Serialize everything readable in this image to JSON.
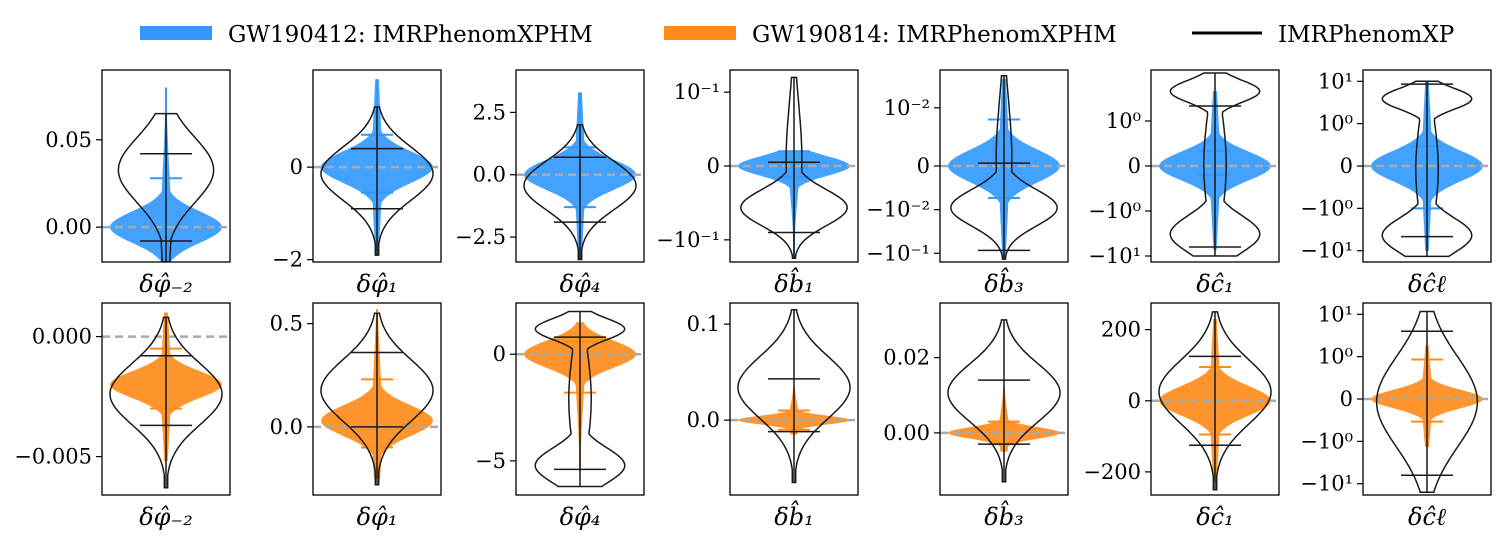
{
  "legend": [
    {
      "label": "GW190412: IMRPhenomXPHM",
      "color": "#3399ff",
      "style": "band"
    },
    {
      "label": "GW190814: IMRPhenomXPHM",
      "color": "#ff8c1a",
      "style": "band"
    },
    {
      "label": "IMRPhenomXP",
      "color": "#000000",
      "style": "line"
    }
  ],
  "colors": {
    "gw190412": "#3399ff",
    "gw190814": "#ff8c1a",
    "xp": "#1a1a1a",
    "zero_line": "#aaaaaa"
  },
  "chart_data": [
    {
      "type": "violin",
      "row": 0,
      "col": 0,
      "event": "gw190412",
      "xlabel": "δφ̂₋₂",
      "scale": "linear",
      "ylim": [
        -0.02,
        0.09
      ],
      "ticks": [
        "0.00",
        "0.05"
      ],
      "tick_values": [
        0,
        0.05
      ],
      "filled": {
        "median": 0.0,
        "low": -0.02,
        "high": 0.08,
        "q_low": -0.008,
        "q_high": 0.028
      },
      "xp": {
        "low": -0.02,
        "high": 0.065,
        "q_low": -0.008,
        "q_high": 0.042,
        "shape": "top"
      }
    },
    {
      "type": "violin",
      "row": 0,
      "col": 1,
      "event": "gw190412",
      "xlabel": "δφ̂₁",
      "scale": "linear",
      "ylim": [
        -2.05,
        2.1
      ],
      "ticks": [
        "−2",
        "0"
      ],
      "tick_values": [
        -2,
        0
      ],
      "filled": {
        "median": 0.0,
        "low": -1.9,
        "high": 1.9,
        "q_low": -0.55,
        "q_high": 0.7
      },
      "xp": {
        "low": -1.9,
        "high": 1.3,
        "q_low": -0.9,
        "q_high": 0.4,
        "shape": "center"
      }
    },
    {
      "type": "violin",
      "row": 0,
      "col": 2,
      "event": "gw190412",
      "xlabel": "δφ̂₄",
      "scale": "linear",
      "ylim": [
        -3.5,
        4.2
      ],
      "ticks": [
        "−2.5",
        "0.0",
        "2.5"
      ],
      "tick_values": [
        -2.5,
        0,
        2.5
      ],
      "filled": {
        "median": 0.0,
        "low": -3.4,
        "high": 3.3,
        "q_low": -1.3,
        "q_high": 1.1
      },
      "xp": {
        "low": -3.4,
        "high": 2.0,
        "q_low": -1.9,
        "q_high": 0.7,
        "shape": "center"
      }
    },
    {
      "type": "violin",
      "row": 0,
      "col": 3,
      "event": "gw190412",
      "xlabel": "δb̂₁",
      "scale": "symlog",
      "ylim": [
        -2.6,
        2.6
      ],
      "ticks": [
        "10⁻¹",
        "0",
        "−10⁻¹"
      ],
      "tick_values": [
        2,
        0,
        -2
      ],
      "filled": {
        "median": 0.0,
        "low": -2.5,
        "high": 0.4,
        "q_low": -0.3,
        "q_high": 0.4
      },
      "xp": {
        "low": -2.5,
        "high": 2.4,
        "q_low": -1.8,
        "q_high": 0.1,
        "shape": "bottom"
      }
    },
    {
      "type": "violin",
      "row": 0,
      "col": 4,
      "event": "gw190412",
      "xlabel": "δb̂₃",
      "scale": "symlog",
      "ylim": [
        -3.3,
        3.3
      ],
      "ticks": [
        "10⁻²",
        "0",
        "−10⁻²",
        "−10⁻¹"
      ],
      "tick_values": [
        2,
        0,
        -1.5,
        -3
      ],
      "filled": {
        "median": 0.0,
        "low": -3.2,
        "high": 3.0,
        "q_low": -1.1,
        "q_high": 1.6
      },
      "xp": {
        "low": -3.2,
        "high": 3.1,
        "q_low": -2.9,
        "q_high": 0.1,
        "shape": "bottom"
      }
    },
    {
      "type": "violin",
      "row": 0,
      "col": 5,
      "event": "gw190412",
      "xlabel": "δĉ₁",
      "scale": "symlog",
      "ylim": [
        -3.2,
        3.2
      ],
      "ticks": [
        "10⁰",
        "0",
        "−10⁰",
        "−10¹"
      ],
      "tick_values": [
        1.5,
        0,
        -1.5,
        -3
      ],
      "filled": {
        "median": 0.0,
        "low": -2.8,
        "high": 2.5,
        "q_low": -0.3,
        "q_high": 0.5
      },
      "xp": {
        "low": -3.0,
        "high": 3.1,
        "q_low": -2.7,
        "q_high": 2.0,
        "shape": "both"
      }
    },
    {
      "type": "violin",
      "row": 0,
      "col": 6,
      "event": "gw190412",
      "xlabel": "δĉℓ",
      "scale": "symlog",
      "ylim": [
        -3.4,
        3.4
      ],
      "ticks": [
        "10¹",
        "10⁰",
        "0",
        "−10⁰",
        "−10¹"
      ],
      "tick_values": [
        3,
        1.5,
        0,
        -1.5,
        -3
      ],
      "filled": {
        "median": 0.0,
        "low": -3.0,
        "high": 3.0,
        "q_low": -1.5,
        "q_high": 0.7
      },
      "xp": {
        "low": -3.2,
        "high": 3.0,
        "q_low": -2.5,
        "q_high": 2.9,
        "shape": "both"
      }
    },
    {
      "type": "violin",
      "row": 1,
      "col": 0,
      "event": "gw190814",
      "xlabel": "δφ̂₋₂",
      "scale": "linear",
      "ylim": [
        -0.0066,
        0.0014
      ],
      "ticks": [
        "0.000",
        "−0.005"
      ],
      "tick_values": [
        0,
        -0.005
      ],
      "filled": {
        "median": -0.002,
        "low": -0.0052,
        "high": 0.001,
        "q_low": -0.003,
        "q_high": -0.0005
      },
      "xp": {
        "low": -0.0063,
        "high": 0.0008,
        "q_low": -0.0037,
        "q_high": -0.0008,
        "shape": "center"
      }
    },
    {
      "type": "violin",
      "row": 1,
      "col": 1,
      "event": "gw190814",
      "xlabel": "δφ̂₁",
      "scale": "linear",
      "ylim": [
        -0.33,
        0.6
      ],
      "ticks": [
        "0.0",
        "0.5"
      ],
      "tick_values": [
        0,
        0.5
      ],
      "filled": {
        "median": 0.03,
        "low": -0.25,
        "high": 0.57,
        "q_low": -0.1,
        "q_high": 0.23
      },
      "xp": {
        "low": -0.28,
        "high": 0.55,
        "q_low": 0.0,
        "q_high": 0.36,
        "shape": "center"
      }
    },
    {
      "type": "violin",
      "row": 1,
      "col": 2,
      "event": "gw190814",
      "xlabel": "δφ̂₄",
      "scale": "linear",
      "ylim": [
        -6.6,
        2.4
      ],
      "ticks": [
        "0",
        "−5"
      ],
      "tick_values": [
        0,
        -5
      ],
      "filled": {
        "median": 0.0,
        "low": -5.5,
        "high": 1.5,
        "q_low": -1.8,
        "q_high": 0.6
      },
      "xp": {
        "low": -6.2,
        "high": 2.0,
        "q_low": -5.4,
        "q_high": 0.8,
        "shape": "both"
      }
    },
    {
      "type": "violin",
      "row": 1,
      "col": 3,
      "event": "gw190814",
      "xlabel": "δb̂₁",
      "scale": "linear",
      "ylim": [
        -0.078,
        0.122
      ],
      "ticks": [
        "0.0",
        "0.1"
      ],
      "tick_values": [
        0,
        0.1
      ],
      "filled": {
        "median": 0.0,
        "low": -0.015,
        "high": 0.035,
        "q_low": -0.01,
        "q_high": 0.01
      },
      "xp": {
        "low": -0.065,
        "high": 0.115,
        "q_low": -0.012,
        "q_high": 0.043,
        "shape": "center"
      }
    },
    {
      "type": "violin",
      "row": 1,
      "col": 4,
      "event": "gw190814",
      "xlabel": "δb̂₃",
      "scale": "linear",
      "ylim": [
        -0.0165,
        0.0345
      ],
      "ticks": [
        "0.00",
        "0.02"
      ],
      "tick_values": [
        0,
        0.02
      ],
      "filled": {
        "median": 0.0,
        "low": -0.005,
        "high": 0.012,
        "q_low": -0.003,
        "q_high": 0.003
      },
      "xp": {
        "low": -0.013,
        "high": 0.03,
        "q_low": -0.003,
        "q_high": 0.014,
        "shape": "center"
      }
    },
    {
      "type": "violin",
      "row": 1,
      "col": 5,
      "event": "gw190814",
      "xlabel": "δĉ₁",
      "scale": "linear",
      "ylim": [
        -265,
        275
      ],
      "ticks": [
        "200",
        "0",
        "−200"
      ],
      "tick_values": [
        200,
        0,
        -200
      ],
      "filled": {
        "median": 0.0,
        "low": -230,
        "high": 230,
        "q_low": -95,
        "q_high": 95
      },
      "xp": {
        "low": -250,
        "high": 250,
        "q_low": -125,
        "q_high": 125,
        "shape": "center"
      }
    },
    {
      "type": "violin",
      "row": 1,
      "col": 6,
      "event": "gw190814",
      "xlabel": "δĉℓ",
      "scale": "symlog",
      "ylim": [
        -3.4,
        3.4
      ],
      "ticks": [
        "10¹",
        "10⁰",
        "0",
        "−10⁰",
        "−10¹"
      ],
      "tick_values": [
        3,
        1.5,
        0,
        -1.5,
        -3
      ],
      "filled": {
        "median": 0.0,
        "low": -1.7,
        "high": 1.9,
        "q_low": -0.8,
        "q_high": 1.4
      },
      "xp": {
        "low": -3.3,
        "high": 3.1,
        "q_low": -2.7,
        "q_high": 2.4,
        "shape": "wide"
      }
    }
  ]
}
